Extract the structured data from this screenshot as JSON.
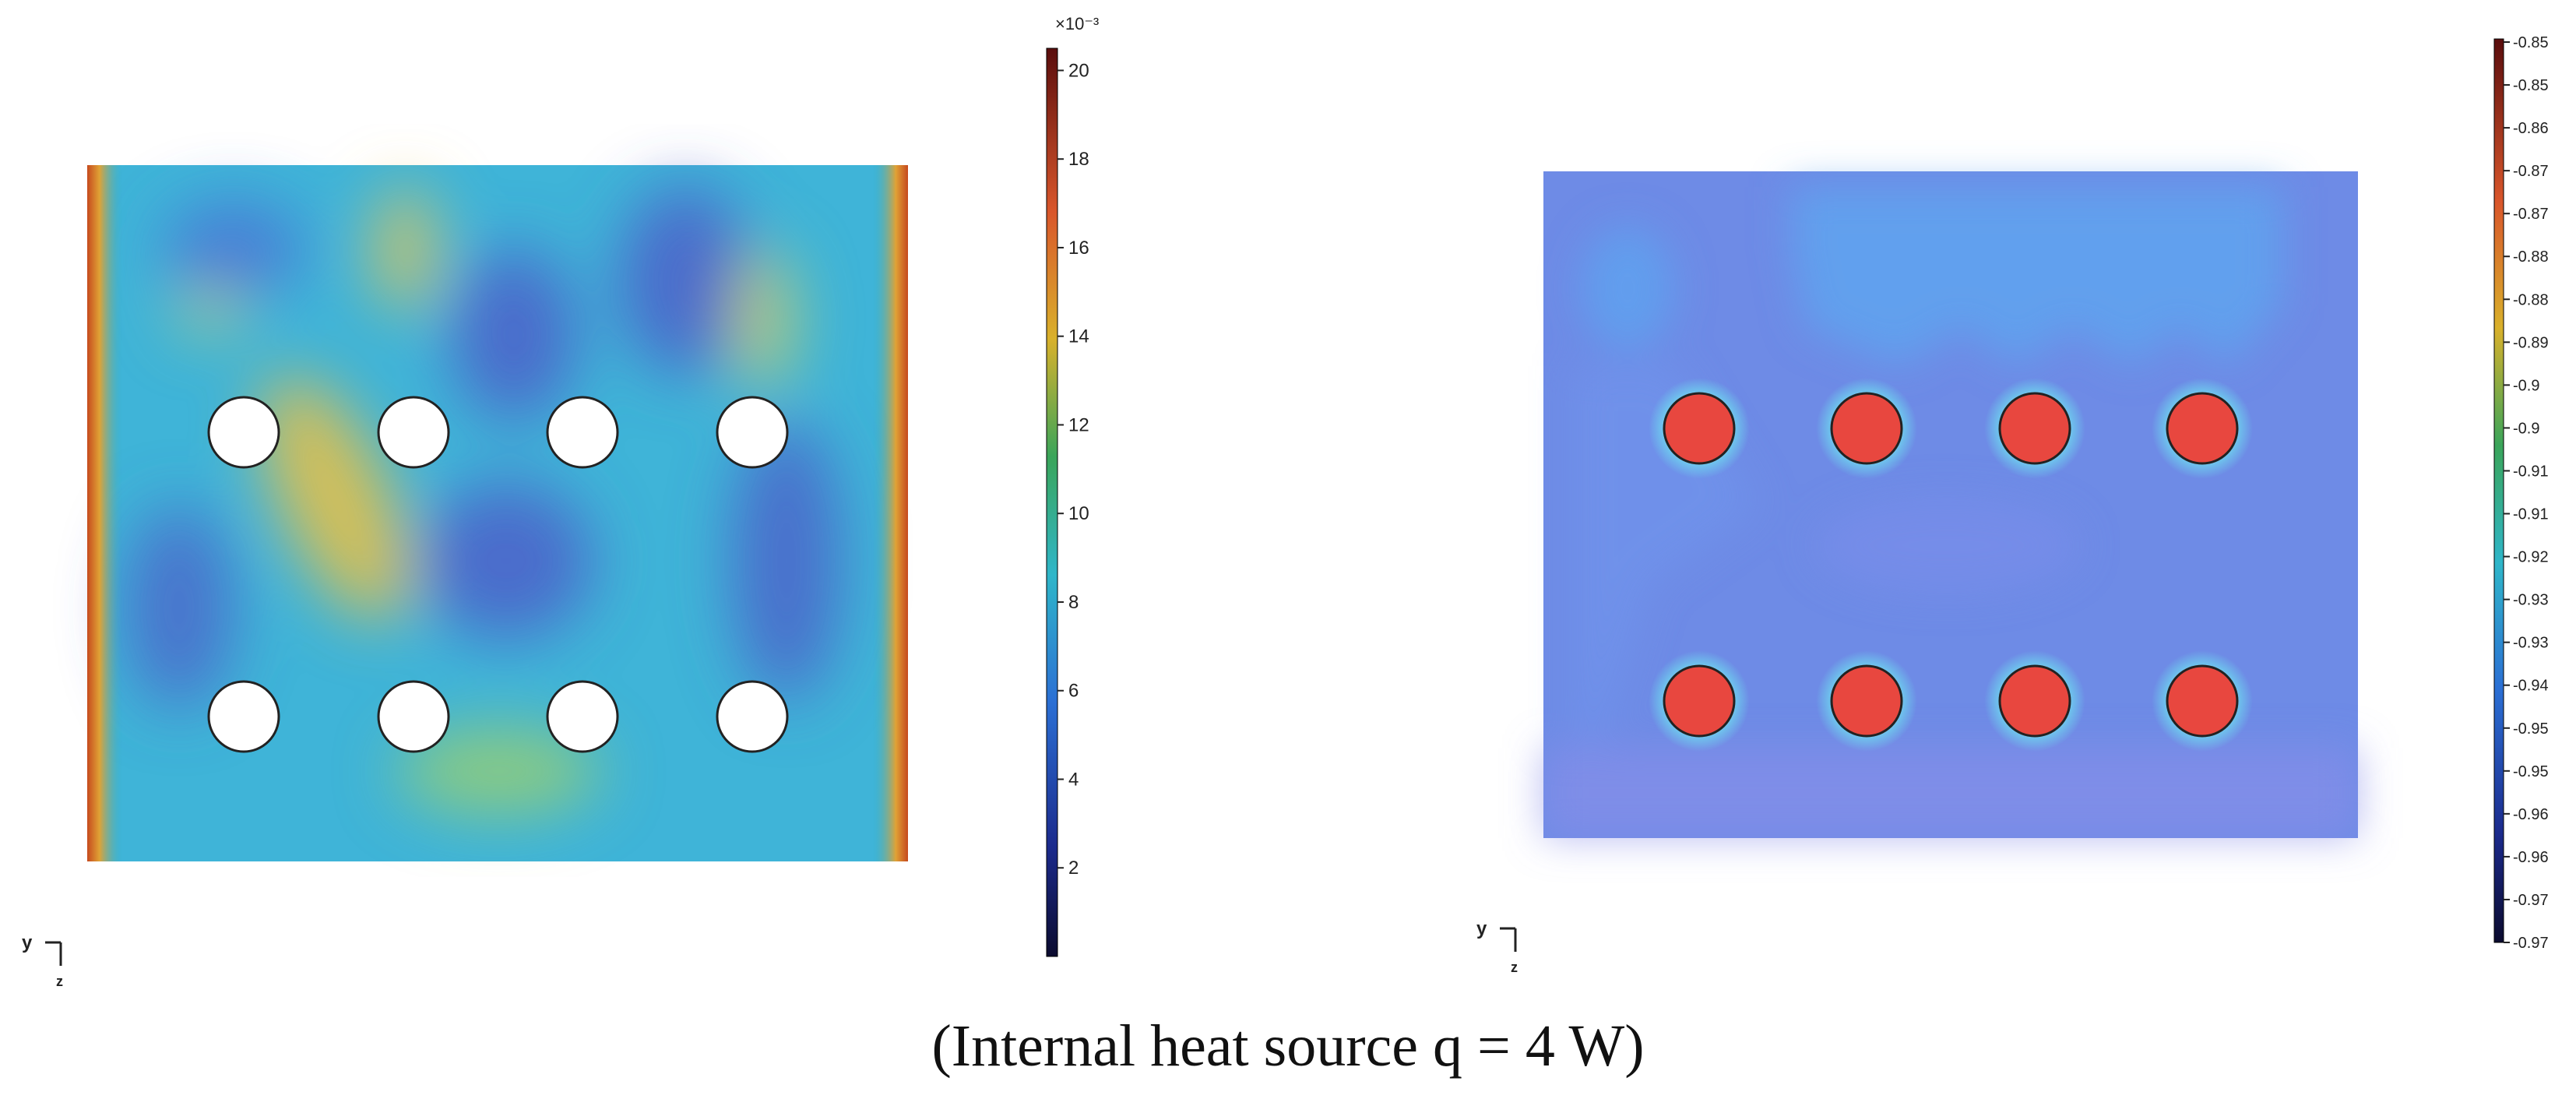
{
  "caption": "(Internal heat source q = 4 W)",
  "chart_data": [
    {
      "type": "heatmap",
      "panel": "left",
      "title": "",
      "colormap": "rainbow",
      "colorbar": {
        "exponent_label": "×10⁻³",
        "ticks": [
          2,
          4,
          6,
          8,
          10,
          12,
          14,
          16,
          18,
          20
        ],
        "range": [
          0,
          20.5
        ]
      },
      "axis_triad": {
        "horizontal": "y",
        "vertical": "z"
      },
      "obstacles": {
        "rows": 2,
        "cols": 4,
        "fill": "#ffffff"
      }
    },
    {
      "type": "heatmap",
      "panel": "right",
      "title": "",
      "colormap": "rainbow",
      "colorbar": {
        "ticks": [
          "-0.85",
          "-0.85",
          "-0.86",
          "-0.87",
          "-0.87",
          "-0.88",
          "-0.88",
          "-0.89",
          "-0.9",
          "-0.9",
          "-0.91",
          "-0.91",
          "-0.92",
          "-0.93",
          "-0.93",
          "-0.94",
          "-0.95",
          "-0.95",
          "-0.96",
          "-0.96",
          "-0.97",
          "-0.97"
        ],
        "range": [
          -0.97,
          -0.85
        ]
      },
      "axis_triad": {
        "horizontal": "y",
        "vertical": "z"
      },
      "obstacles": {
        "rows": 2,
        "cols": 4,
        "fill": "#e8473f"
      }
    }
  ]
}
